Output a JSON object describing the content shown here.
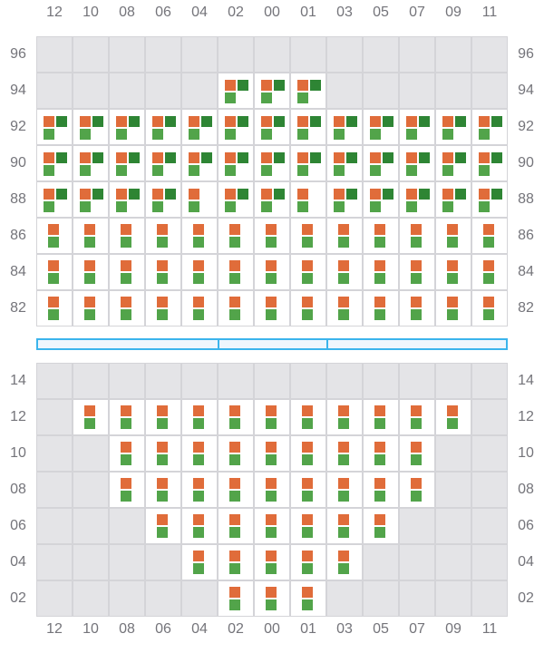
{
  "columns": [
    "12",
    "10",
    "08",
    "06",
    "04",
    "02",
    "00",
    "01",
    "03",
    "05",
    "07",
    "09",
    "11"
  ],
  "colors": {
    "orange": "#e06c3a",
    "dark_green": "#2e8534",
    "light_green": "#52a44a",
    "empty": "#e4e4e7",
    "divider": "#3bb4ec"
  },
  "legend_codes": {
    "0": "empty",
    "1": "orange + light green (stacked)",
    "2": "orange + light green",
    "3": "orange + dark green + light green"
  },
  "top_section": {
    "rows": [
      {
        "label": "96",
        "cells": [
          0,
          0,
          0,
          0,
          0,
          0,
          0,
          0,
          0,
          0,
          0,
          0,
          0
        ]
      },
      {
        "label": "94",
        "cells": [
          0,
          0,
          0,
          0,
          0,
          3,
          3,
          3,
          0,
          0,
          0,
          0,
          0
        ]
      },
      {
        "label": "92",
        "cells": [
          3,
          3,
          3,
          3,
          3,
          3,
          3,
          3,
          3,
          3,
          3,
          3,
          3
        ]
      },
      {
        "label": "90",
        "cells": [
          3,
          3,
          3,
          3,
          3,
          3,
          3,
          3,
          3,
          3,
          3,
          3,
          3
        ]
      },
      {
        "label": "88",
        "cells": [
          3,
          3,
          3,
          3,
          2,
          3,
          3,
          2,
          3,
          3,
          3,
          3,
          3
        ]
      },
      {
        "label": "86",
        "cells": [
          1,
          1,
          1,
          1,
          1,
          1,
          1,
          1,
          1,
          1,
          1,
          1,
          1
        ]
      },
      {
        "label": "84",
        "cells": [
          1,
          1,
          1,
          1,
          1,
          1,
          1,
          1,
          1,
          1,
          1,
          1,
          1
        ]
      },
      {
        "label": "82",
        "cells": [
          1,
          1,
          1,
          1,
          1,
          1,
          1,
          1,
          1,
          1,
          1,
          1,
          1
        ]
      }
    ]
  },
  "bottom_section": {
    "rows": [
      {
        "label": "14",
        "cells": [
          0,
          0,
          0,
          0,
          0,
          0,
          0,
          0,
          0,
          0,
          0,
          0,
          0
        ]
      },
      {
        "label": "12",
        "cells": [
          0,
          1,
          1,
          1,
          1,
          1,
          1,
          1,
          1,
          1,
          1,
          1,
          0
        ]
      },
      {
        "label": "10",
        "cells": [
          0,
          0,
          1,
          1,
          1,
          1,
          1,
          1,
          1,
          1,
          1,
          0,
          0
        ]
      },
      {
        "label": "08",
        "cells": [
          0,
          0,
          1,
          1,
          1,
          1,
          1,
          1,
          1,
          1,
          1,
          0,
          0
        ]
      },
      {
        "label": "06",
        "cells": [
          0,
          0,
          0,
          1,
          1,
          1,
          1,
          1,
          1,
          1,
          0,
          0,
          0
        ]
      },
      {
        "label": "04",
        "cells": [
          0,
          0,
          0,
          0,
          1,
          1,
          1,
          1,
          1,
          0,
          0,
          0,
          0
        ]
      },
      {
        "label": "02",
        "cells": [
          0,
          0,
          0,
          0,
          0,
          1,
          1,
          1,
          0,
          0,
          0,
          0,
          0
        ]
      }
    ]
  }
}
